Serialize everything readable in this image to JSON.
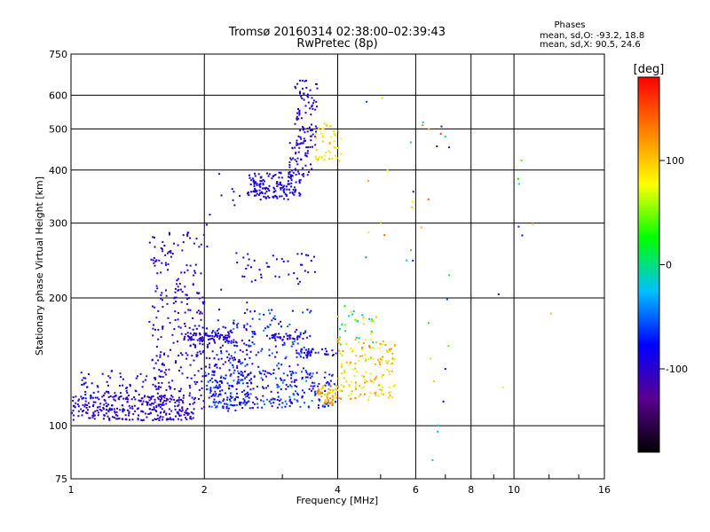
{
  "header": {
    "title_line1": "Tromsø 20160314 02:38:00–02:39:43",
    "title_line2": "RwPretec (8p)",
    "stats_title": "Phases",
    "stats_o": "mean, sd,O: -93.2, 18.8",
    "stats_x": "mean, sd,X:  90.5, 24.6"
  },
  "chart_data": {
    "type": "scatter",
    "xlabel": "Frequency [MHz]",
    "ylabel": "Stationary phase Virtual Height [km]",
    "x_scale": "log",
    "y_scale": "log",
    "xlim": [
      1,
      16
    ],
    "ylim": [
      75,
      750
    ],
    "x_ticks": [
      1,
      2,
      4,
      6,
      8,
      10,
      16
    ],
    "x_tick_labels": [
      "1",
      "2",
      "4",
      "6",
      "8",
      "10",
      "16"
    ],
    "y_ticks": [
      75,
      100,
      200,
      300,
      400,
      500,
      600,
      750
    ],
    "y_tick_labels": [
      "75",
      "100",
      "200",
      "300",
      "400",
      "500",
      "600",
      "750"
    ],
    "grid": true,
    "colorbar": {
      "label": "[deg]",
      "range": [
        -180,
        180
      ],
      "ticks": [
        100,
        0,
        -100
      ],
      "tick_labels": [
        "100",
        "0",
        "-100"
      ],
      "colors": [
        "#000000",
        "#5a0090",
        "#0000ff",
        "#00c0ff",
        "#00ff00",
        "#ffff00",
        "#ff8000",
        "#ff0000"
      ]
    },
    "clusters": [
      {
        "xr": [
          1.0,
          1.9
        ],
        "yr": [
          103,
          118
        ],
        "n": 330,
        "phase": [
          -115,
          -85
        ]
      },
      {
        "xr": [
          1.05,
          1.6
        ],
        "yr": [
          115,
          135
        ],
        "n": 70,
        "phase": [
          -115,
          -70
        ]
      },
      {
        "xr": [
          1.5,
          2.0
        ],
        "yr": [
          120,
          285
        ],
        "n": 220,
        "phase": [
          -115,
          -85
        ]
      },
      {
        "xr": [
          1.85,
          2.6
        ],
        "yr": [
          108,
          175
        ],
        "n": 190,
        "phase": [
          -115,
          -75
        ]
      },
      {
        "xr": [
          2.0,
          4.0
        ],
        "yr": [
          110,
          135
        ],
        "n": 270,
        "phase": [
          -115,
          -40
        ]
      },
      {
        "xr": [
          1.8,
          2.3
        ],
        "yr": [
          158,
          165
        ],
        "n": 60,
        "phase": [
          -110,
          -90
        ]
      },
      {
        "xr": [
          2.8,
          3.4
        ],
        "yr": [
          158,
          165
        ],
        "n": 35,
        "phase": [
          -110,
          -90
        ]
      },
      {
        "xr": [
          3.2,
          4.0
        ],
        "yr": [
          145,
          152
        ],
        "n": 35,
        "phase": [
          -110,
          -60
        ]
      },
      {
        "xr": [
          2.1,
          3.5
        ],
        "yr": [
          130,
          190
        ],
        "n": 140,
        "phase": [
          -110,
          -40
        ]
      },
      {
        "xr": [
          2.4,
          3.6
        ],
        "yr": [
          215,
          255
        ],
        "n": 40,
        "phase": [
          -110,
          -80
        ]
      },
      {
        "xr": [
          2.5,
          3.3
        ],
        "yr": [
          340,
          395
        ],
        "n": 160,
        "phase": [
          -110,
          -75
        ]
      },
      {
        "xr": [
          3.1,
          3.5
        ],
        "yr": [
          385,
          470
        ],
        "n": 45,
        "phase": [
          -110,
          -85
        ]
      },
      {
        "xr": [
          3.2,
          3.6
        ],
        "yr": [
          450,
          650
        ],
        "n": 85,
        "phase": [
          -110,
          -85
        ]
      },
      {
        "xr": [
          3.55,
          4.1
        ],
        "yr": [
          420,
          520
        ],
        "n": 45,
        "phase": [
          60,
          110
        ]
      },
      {
        "xr": [
          3.6,
          4.0
        ],
        "yr": [
          112,
          125
        ],
        "n": 55,
        "phase": [
          85,
          130
        ]
      },
      {
        "xr": [
          4.0,
          5.4
        ],
        "yr": [
          115,
          160
        ],
        "n": 150,
        "phase": [
          60,
          130
        ]
      },
      {
        "xr": [
          4.0,
          4.9
        ],
        "yr": [
          155,
          195
        ],
        "n": 30,
        "phase": [
          -40,
          110
        ]
      },
      {
        "xr": [
          2.0,
          2.5
        ],
        "yr": [
          180,
          400
        ],
        "n": 15,
        "phase": [
          -110,
          -90
        ]
      },
      {
        "xr": [
          4.6,
          6.2
        ],
        "yr": [
          240,
          640
        ],
        "n": 16,
        "phase": [
          -110,
          150
        ]
      },
      {
        "xr": [
          6.2,
          7.2
        ],
        "yr": [
          80,
          620
        ],
        "n": 20,
        "phase": [
          -110,
          160
        ]
      },
      {
        "xr": [
          9.0,
          13.0
        ],
        "yr": [
          105,
          470
        ],
        "n": 9,
        "phase": [
          -110,
          160
        ]
      }
    ]
  }
}
